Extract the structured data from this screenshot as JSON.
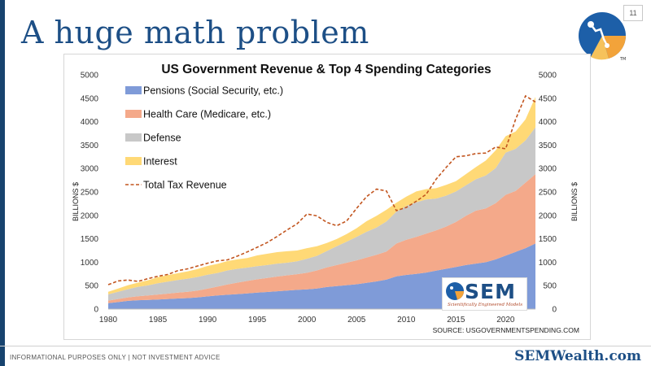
{
  "slide": {
    "title": "A huge math problem",
    "page_number": "11",
    "footer_note": "INFORMATIONAL PURPOSES ONLY | NOT INVESTMENT ADVICE",
    "footer_brand": "SEMWealth.com",
    "logo_tm": "TM"
  },
  "badge": {
    "name": "SEM",
    "tagline": "Scientifically Engineered Models"
  },
  "colors": {
    "title": "#1d4f86",
    "pensions": "#7f9bd8",
    "health": "#f4a98a",
    "defense": "#c8c8c8",
    "interest": "#ffd976",
    "revenue": "#c2551f"
  },
  "chart_data": {
    "type": "area",
    "title": "US Government Revenue & Top 4 Spending Categories",
    "ylabel_left": "BILLIONS $",
    "ylabel_right": "BILLIONS $",
    "source": "SOURCE: USGOVERNMENTSPENDING.COM",
    "stacked": true,
    "legend_position": "top-left",
    "xlim": [
      1980,
      2023
    ],
    "ylim": [
      0,
      5000
    ],
    "x_ticks": [
      1980,
      1985,
      1990,
      1995,
      2000,
      2005,
      2010,
      2015,
      2020
    ],
    "y_ticks": [
      0,
      500,
      1000,
      1500,
      2000,
      2500,
      3000,
      3500,
      4000,
      4500,
      5000
    ],
    "x": [
      1980,
      1981,
      1982,
      1983,
      1984,
      1985,
      1986,
      1987,
      1988,
      1989,
      1990,
      1991,
      1992,
      1993,
      1994,
      1995,
      1996,
      1997,
      1998,
      1999,
      2000,
      2001,
      2002,
      2003,
      2004,
      2005,
      2006,
      2007,
      2008,
      2009,
      2010,
      2011,
      2012,
      2013,
      2014,
      2015,
      2016,
      2017,
      2018,
      2019,
      2020,
      2021,
      2022,
      2023
    ],
    "series": [
      {
        "name": "Pensions (Social Security, etc.)",
        "kind": "area",
        "values": [
          125,
          150,
          175,
          190,
          195,
          205,
          215,
          225,
          235,
          250,
          270,
          290,
          305,
          320,
          335,
          350,
          365,
          380,
          395,
          410,
          420,
          440,
          470,
          490,
          510,
          530,
          560,
          590,
          630,
          700,
          730,
          750,
          780,
          820,
          860,
          900,
          940,
          970,
          1000,
          1060,
          1140,
          1220,
          1300,
          1400
        ]
      },
      {
        "name": "Health Care (Medicare, etc.)",
        "kind": "area",
        "values": [
          55,
          65,
          75,
          85,
          95,
          105,
          115,
          125,
          135,
          145,
          165,
          190,
          220,
          245,
          265,
          285,
          300,
          315,
          325,
          335,
          355,
          385,
          420,
          450,
          480,
          510,
          540,
          570,
          600,
          700,
          750,
          790,
          830,
          860,
          900,
          960,
          1050,
          1130,
          1150,
          1200,
          1300,
          1300,
          1400,
          1480
        ]
      },
      {
        "name": "Defense",
        "kind": "area",
        "values": [
          135,
          155,
          175,
          200,
          215,
          240,
          255,
          270,
          280,
          290,
          300,
          290,
          300,
          295,
          285,
          280,
          275,
          275,
          270,
          275,
          300,
          310,
          350,
          400,
          450,
          500,
          550,
          580,
          640,
          680,
          720,
          740,
          730,
          680,
          660,
          650,
          650,
          670,
          700,
          750,
          900,
          900,
          900,
          1000
        ]
      },
      {
        "name": "Interest",
        "kind": "area",
        "values": [
          55,
          70,
          85,
          90,
          110,
          130,
          140,
          145,
          155,
          170,
          185,
          195,
          200,
          200,
          205,
          230,
          240,
          245,
          245,
          230,
          225,
          205,
          170,
          155,
          160,
          185,
          225,
          250,
          250,
          190,
          200,
          230,
          220,
          220,
          230,
          220,
          240,
          260,
          320,
          380,
          350,
          370,
          450,
          650
        ]
      },
      {
        "name": "Total Tax Revenue",
        "kind": "line",
        "values": [
          520,
          600,
          620,
          590,
          650,
          700,
          740,
          820,
          860,
          920,
          980,
          1030,
          1050,
          1130,
          1220,
          1320,
          1420,
          1550,
          1690,
          1820,
          2030,
          1990,
          1850,
          1780,
          1880,
          2150,
          2400,
          2560,
          2520,
          2100,
          2170,
          2300,
          2450,
          2770,
          3020,
          3250,
          3270,
          3320,
          3330,
          3460,
          3420,
          4050,
          4550,
          4420
        ]
      }
    ]
  }
}
